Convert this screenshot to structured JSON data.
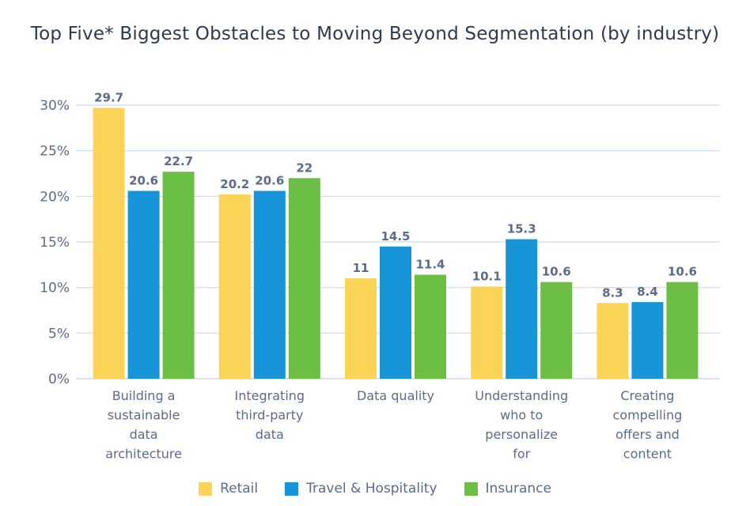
{
  "colors": {
    "retail": "#fad457",
    "travel": "#1894d8",
    "insurance": "#6cbe45",
    "grid": "#c9daf0",
    "text": "#5b6b8a",
    "title": "#2b3a50"
  },
  "chart_data": {
    "type": "bar",
    "title": "Top Five* Biggest Obstacles to Moving Beyond Segmentation (by industry)",
    "xlabel": "",
    "ylabel": "",
    "ylim": [
      0,
      30
    ],
    "yticks": [
      "0%",
      "5%",
      "10%",
      "15%",
      "20%",
      "25%",
      "30%"
    ],
    "categories": [
      [
        "Building a",
        "sustainable",
        "data",
        "architecture"
      ],
      [
        "Integrating",
        "third-party",
        "data"
      ],
      [
        "Data quality"
      ],
      [
        "Understanding",
        "who to",
        "personalize",
        "for"
      ],
      [
        "Creating",
        "compelling",
        "offers and",
        "content"
      ]
    ],
    "series": [
      {
        "name": "Retail",
        "values": [
          29.7,
          20.2,
          11,
          10.1,
          8.3
        ],
        "labels": [
          "29.7",
          "20.2",
          "11",
          "10.1",
          "8.3"
        ]
      },
      {
        "name": "Travel & Hospitality",
        "values": [
          20.6,
          20.6,
          14.5,
          15.3,
          8.4
        ],
        "labels": [
          "20.6",
          "20.6",
          "14.5",
          "15.3",
          "8.4"
        ]
      },
      {
        "name": "Insurance",
        "values": [
          22.7,
          22,
          11.4,
          10.6,
          10.6
        ],
        "labels": [
          "22.7",
          "22",
          "11.4",
          "10.6",
          "10.6"
        ]
      }
    ],
    "grid": true,
    "legend_position": "bottom"
  }
}
